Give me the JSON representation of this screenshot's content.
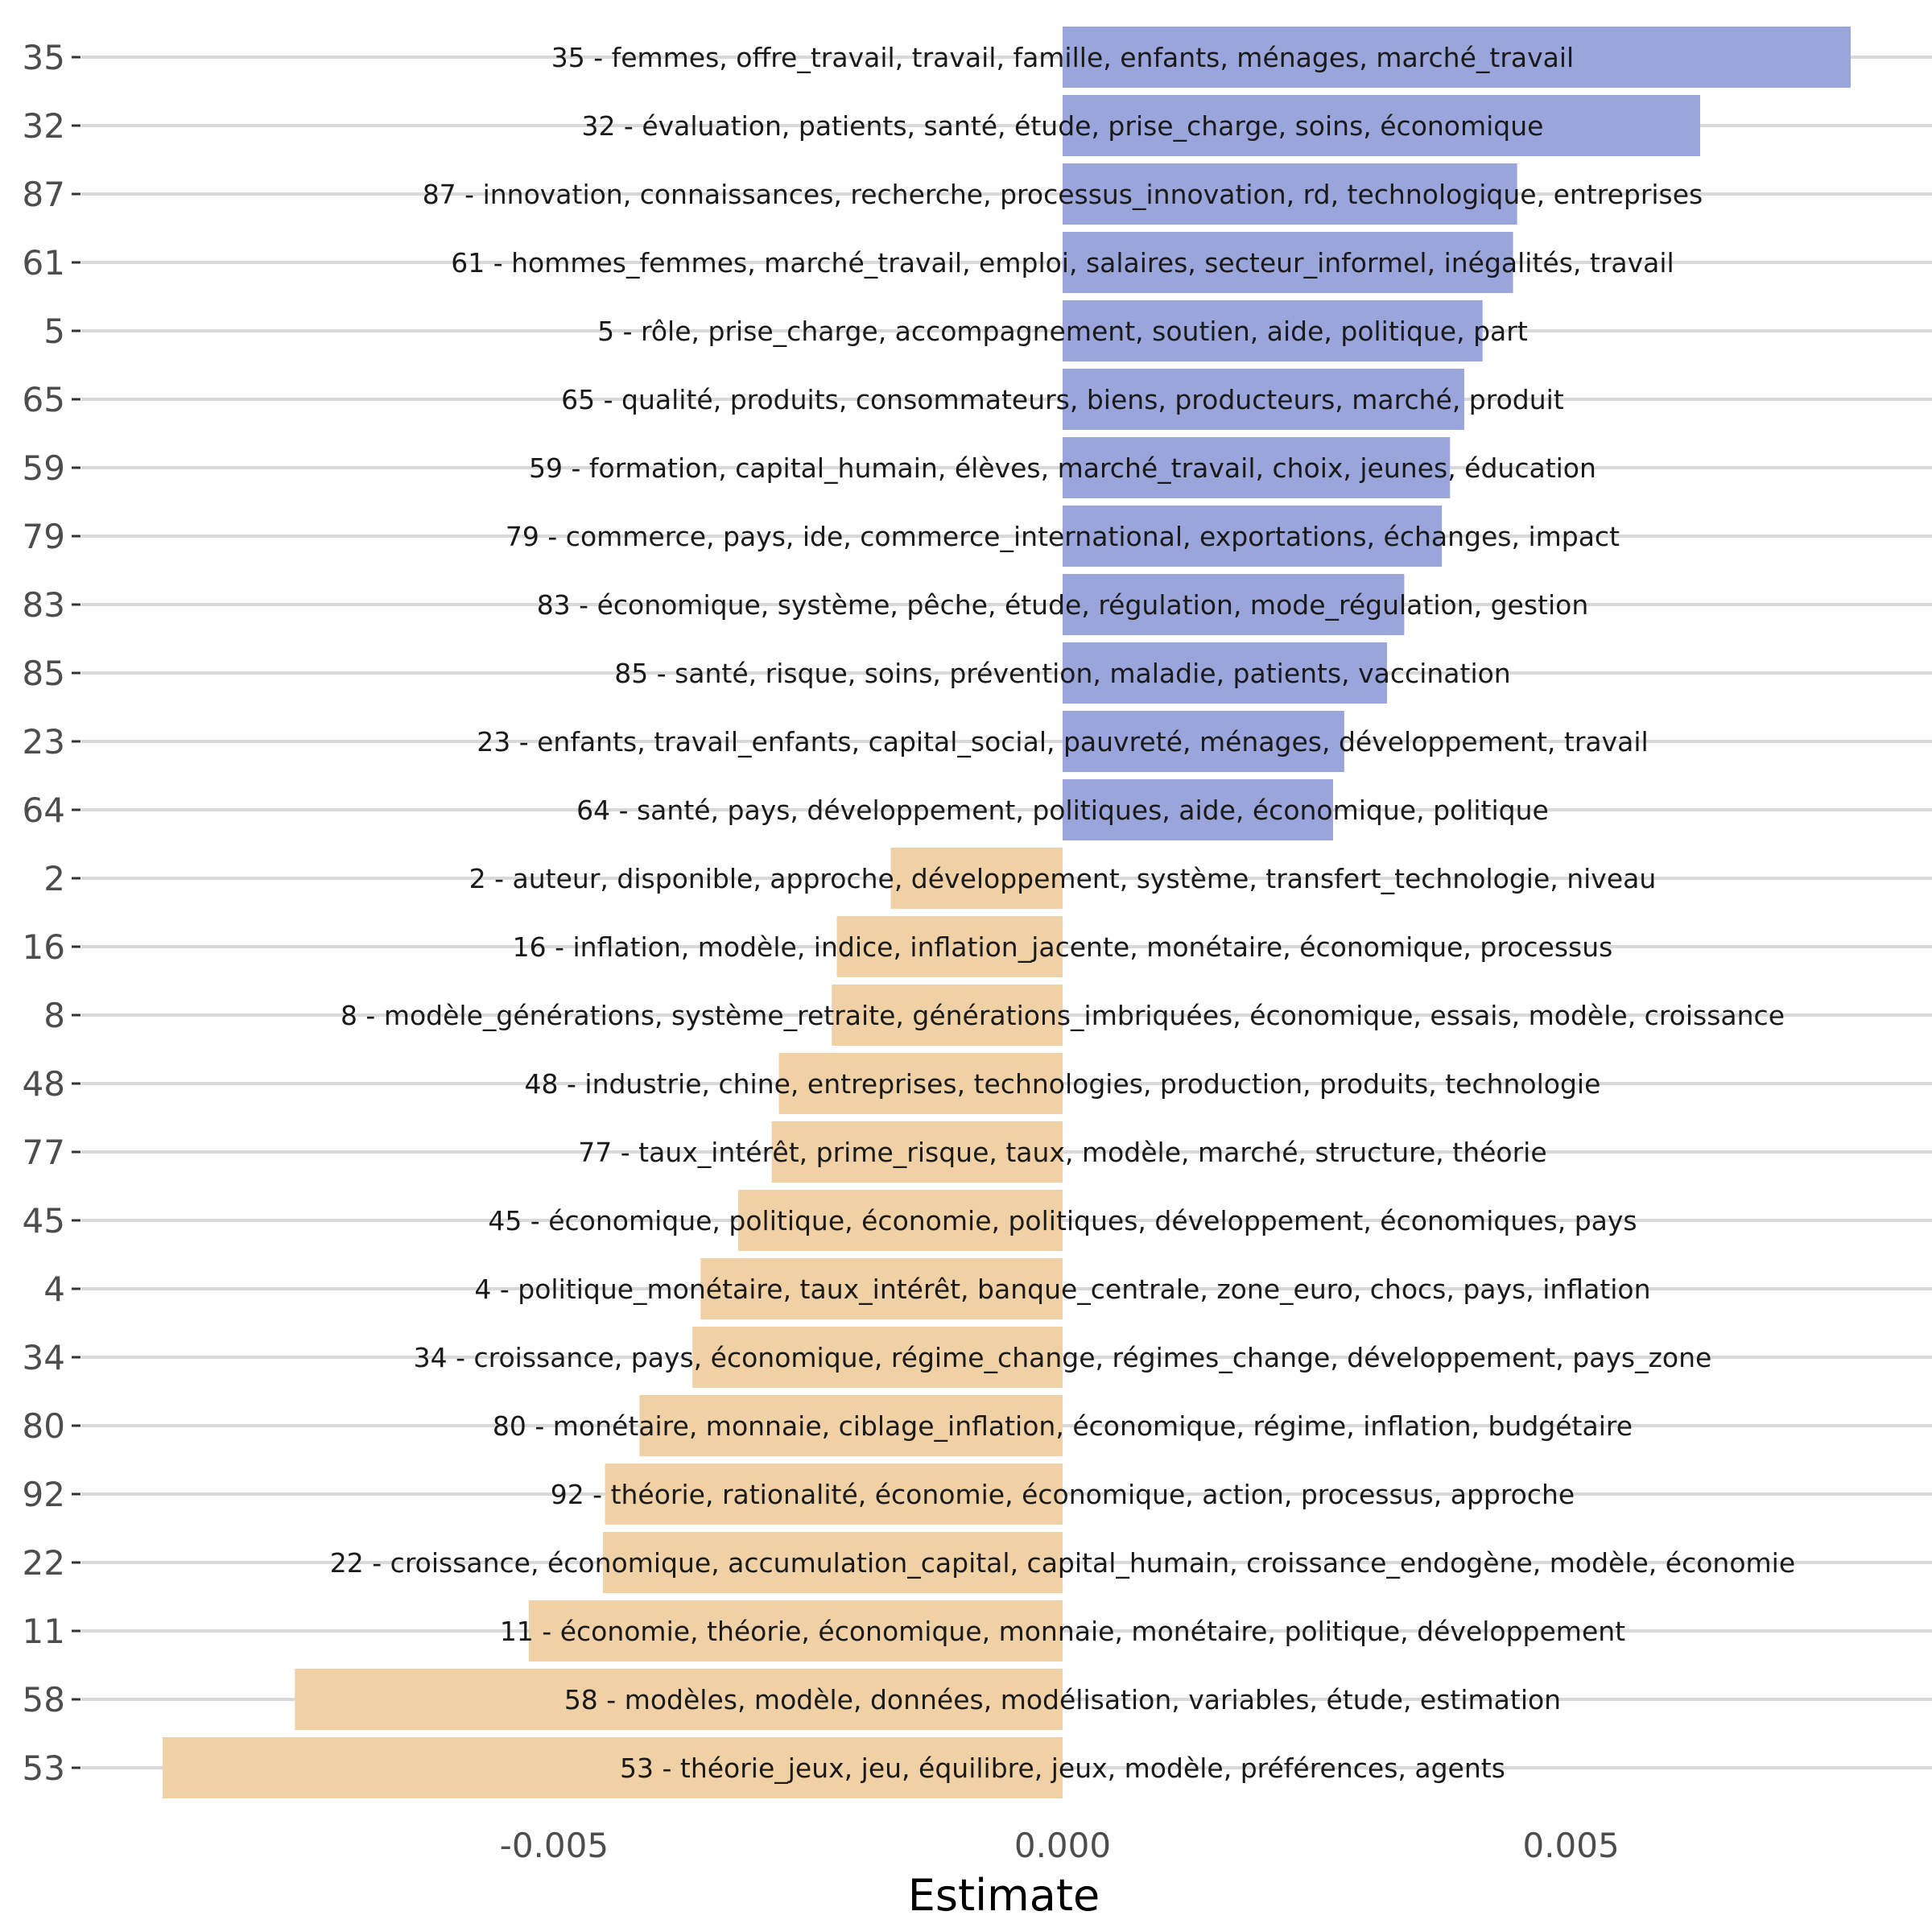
{
  "chart_data": {
    "type": "bar",
    "orientation": "horizontal",
    "xlabel": "Estimate",
    "ylabel": "",
    "xlim": [
      -0.00965,
      0.00855
    ],
    "x_ticks": [
      -0.005,
      0.0,
      0.005
    ],
    "x_tick_labels": [
      "-0.005",
      "0.000",
      "0.005"
    ],
    "grid": "horizontal major lines only",
    "legend": "none",
    "colors": {
      "positive": "#9aa5db",
      "negative": "#f0d1a6"
    },
    "bars": [
      {
        "topic": "35",
        "value": 0.00775,
        "label": "35 - femmes, offre_travail, travail, famille, enfants, ménages, marché_travail"
      },
      {
        "topic": "32",
        "value": 0.00627,
        "label": "32 - évaluation, patients, santé, étude, prise_charge, soins, économique"
      },
      {
        "topic": "87",
        "value": 0.00447,
        "label": "87 - innovation, connaissances, recherche, processus_innovation, rd, technologique, entreprises"
      },
      {
        "topic": "61",
        "value": 0.00443,
        "label": "61 - hommes_femmes, marché_travail, emploi, salaires, secteur_informel, inégalités, travail"
      },
      {
        "topic": "5",
        "value": 0.00413,
        "label": "5 - rôle, prise_charge, accompagnement, soutien, aide, politique, part"
      },
      {
        "topic": "65",
        "value": 0.00395,
        "label": "65 - qualité, produits, consommateurs, biens, producteurs, marché, produit"
      },
      {
        "topic": "59",
        "value": 0.00381,
        "label": "59 - formation, capital_humain, élèves, marché_travail, choix, jeunes, éducation"
      },
      {
        "topic": "79",
        "value": 0.00373,
        "label": "79 - commerce, pays, ide, commerce_international, exportations, échanges, impact"
      },
      {
        "topic": "83",
        "value": 0.00336,
        "label": "83 - économique, système, pêche, étude, régulation, mode_régulation, gestion"
      },
      {
        "topic": "85",
        "value": 0.00319,
        "label": "85 - santé, risque, soins, prévention, maladie, patients, vaccination"
      },
      {
        "topic": "23",
        "value": 0.00277,
        "label": "23 - enfants, travail_enfants, capital_social, pauvreté, ménages, développement, travail"
      },
      {
        "topic": "64",
        "value": 0.00266,
        "label": "64 - santé, pays, développement, politiques, aide, économique, politique"
      },
      {
        "topic": "2",
        "value": -0.00169,
        "label": "2 - auteur, disponible, approche, développement, système, transfert_technologie, niveau"
      },
      {
        "topic": "16",
        "value": -0.00222,
        "label": "16 - inflation, modèle, indice, inflation_jacente, monétaire, économique, processus"
      },
      {
        "topic": "8",
        "value": -0.00227,
        "label": "8 - modèle_générations, système_retraite, générations_imbriquées, économique, essais, modèle, croissance"
      },
      {
        "topic": "48",
        "value": -0.00279,
        "label": "48 - industrie, chine, entreprises, technologies, production, produits, technologie"
      },
      {
        "topic": "77",
        "value": -0.00286,
        "label": "77 - taux_intérêt, prime_risque, taux, modèle, marché, structure, théorie"
      },
      {
        "topic": "45",
        "value": -0.00319,
        "label": "45 - économique, politique, économie, politiques, développement, économiques, pays"
      },
      {
        "topic": "4",
        "value": -0.00356,
        "label": "4 - politique_monétaire, taux_intérêt, banque_centrale, zone_euro, chocs, pays, inflation"
      },
      {
        "topic": "34",
        "value": -0.00364,
        "label": "34 - croissance, pays, économique, régime_change, régimes_change, développement, pays_zone"
      },
      {
        "topic": "80",
        "value": -0.00416,
        "label": "80 - monétaire, monnaie, ciblage_inflation, économique, régime, inflation, budgétaire"
      },
      {
        "topic": "92",
        "value": -0.0045,
        "label": "92 - théorie, rationalité, économie, économique, action, processus, approche"
      },
      {
        "topic": "22",
        "value": -0.00452,
        "label": "22 - croissance, économique, accumulation_capital, capital_humain, croissance_endogène, modèle, économie"
      },
      {
        "topic": "11",
        "value": -0.00525,
        "label": "11 - économie, théorie, économique, monnaie, monétaire, politique, développement"
      },
      {
        "topic": "58",
        "value": -0.00755,
        "label": "58 - modèles, modèle, données, modélisation, variables, étude, estimation"
      },
      {
        "topic": "53",
        "value": -0.00885,
        "label": "53 - théorie_jeux, jeu, équilibre, jeux, modèle, préférences, agents"
      }
    ]
  }
}
